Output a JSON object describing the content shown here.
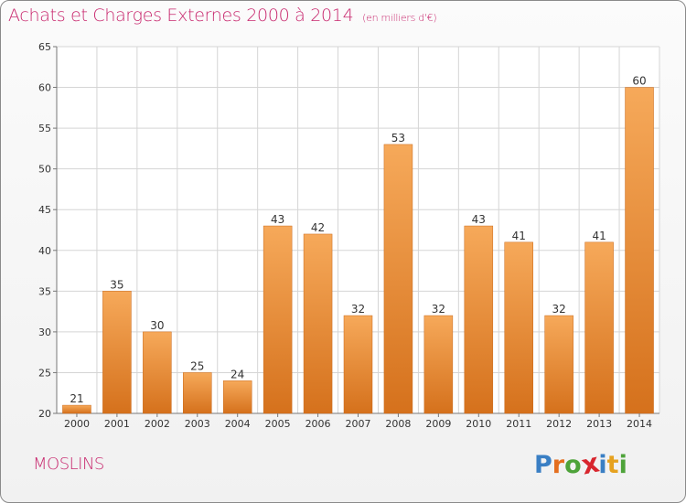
{
  "title": "Achats et Charges Externes 2000 à 2014",
  "subtitle": "(en milliers d'€)",
  "commune": "MOSLINS",
  "logo": {
    "letters": [
      "P",
      "r",
      "o",
      "x",
      "i",
      "t",
      "i"
    ],
    "colors": [
      "#3a7fc4",
      "#e46f1f",
      "#4ea33a",
      "#d8262e",
      "#3a7fc4",
      "#e6a21f",
      "#4ea33a"
    ]
  },
  "colors": {
    "bar_light": "#f6a95a",
    "bar_dark": "#d5711c",
    "title": "#c8286e",
    "grid": "#d5d5d5"
  },
  "chart_data": {
    "type": "bar",
    "title": "Achats et Charges Externes 2000 à 2014",
    "subtitle": "(en milliers d'€)",
    "categories": [
      "2000",
      "2001",
      "2002",
      "2003",
      "2004",
      "2005",
      "2006",
      "2007",
      "2008",
      "2009",
      "2010",
      "2011",
      "2012",
      "2013",
      "2014"
    ],
    "values": [
      21,
      35,
      30,
      25,
      24,
      43,
      42,
      32,
      53,
      32,
      43,
      41,
      32,
      41,
      60
    ],
    "ylim": [
      20,
      65
    ],
    "yticks": [
      20,
      25,
      30,
      35,
      40,
      45,
      50,
      55,
      60,
      65
    ],
    "grid": true,
    "xlabel": "",
    "ylabel": ""
  }
}
